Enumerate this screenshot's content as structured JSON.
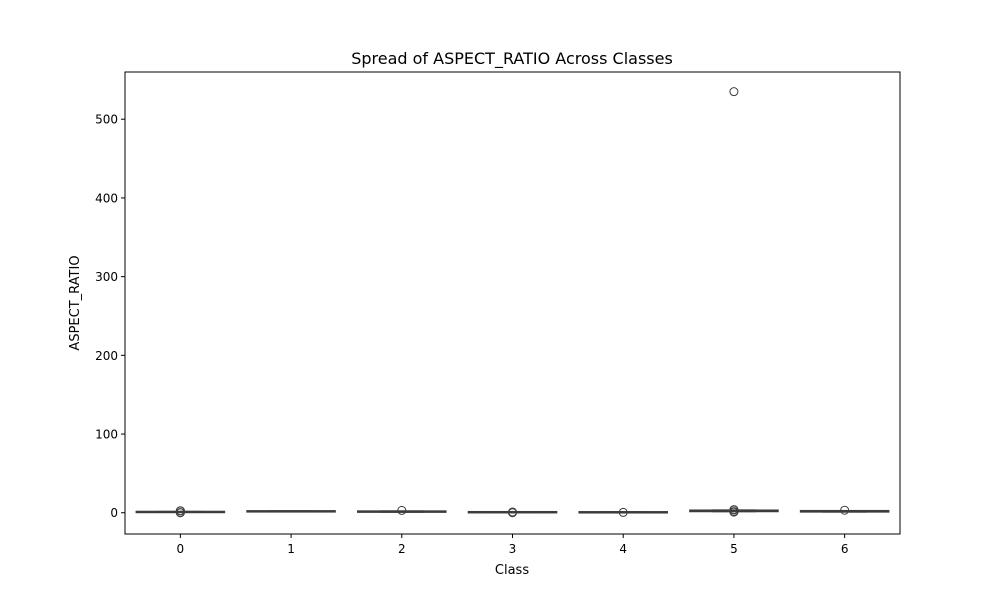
{
  "chart_data": {
    "type": "box",
    "title": "Spread of ASPECT_RATIO Across Classes",
    "xlabel": "Class",
    "ylabel": "ASPECT_RATIO",
    "categories": [
      "0",
      "1",
      "2",
      "3",
      "4",
      "5",
      "6"
    ],
    "ylim": [
      -27,
      560
    ],
    "yticks": [
      0,
      100,
      200,
      300,
      400,
      500
    ],
    "ytick_labels": [
      "0",
      "100",
      "200",
      "300",
      "400",
      "500"
    ],
    "grid": false,
    "legend": "none",
    "colors": {
      "box_fill": "#3a3a3a",
      "line": "#3d3d3d",
      "outlier": "#3d3d3d"
    },
    "boxes": [
      {
        "category": "0",
        "whislo": 0.3,
        "q1": 0.7,
        "med": 1.0,
        "q3": 1.3,
        "whishi": 1.8,
        "fliers": [
          0.0,
          0.1,
          2.2,
          2.6
        ]
      },
      {
        "category": "1",
        "whislo": 1.0,
        "q1": 1.5,
        "med": 1.8,
        "q3": 2.1,
        "whishi": 2.6,
        "fliers": []
      },
      {
        "category": "2",
        "whislo": 0.6,
        "q1": 1.1,
        "med": 1.4,
        "q3": 1.8,
        "whishi": 2.4,
        "fliers": [
          3.0
        ]
      },
      {
        "category": "3",
        "whislo": 0.2,
        "q1": 0.6,
        "med": 0.8,
        "q3": 1.0,
        "whishi": 1.4,
        "fliers": [
          0.0,
          0.9
        ]
      },
      {
        "category": "4",
        "whislo": 0.2,
        "q1": 0.5,
        "med": 0.7,
        "q3": 0.9,
        "whishi": 1.3,
        "fliers": [
          0.4
        ]
      },
      {
        "category": "5",
        "whislo": 1.2,
        "q1": 1.9,
        "med": 2.4,
        "q3": 2.9,
        "whishi": 3.6,
        "fliers": [
          0.8,
          1.5,
          3.5,
          4.0,
          535
        ]
      },
      {
        "category": "6",
        "whislo": 0.8,
        "q1": 1.4,
        "med": 1.8,
        "q3": 2.3,
        "whishi": 2.9,
        "fliers": [
          3.2
        ]
      }
    ]
  }
}
